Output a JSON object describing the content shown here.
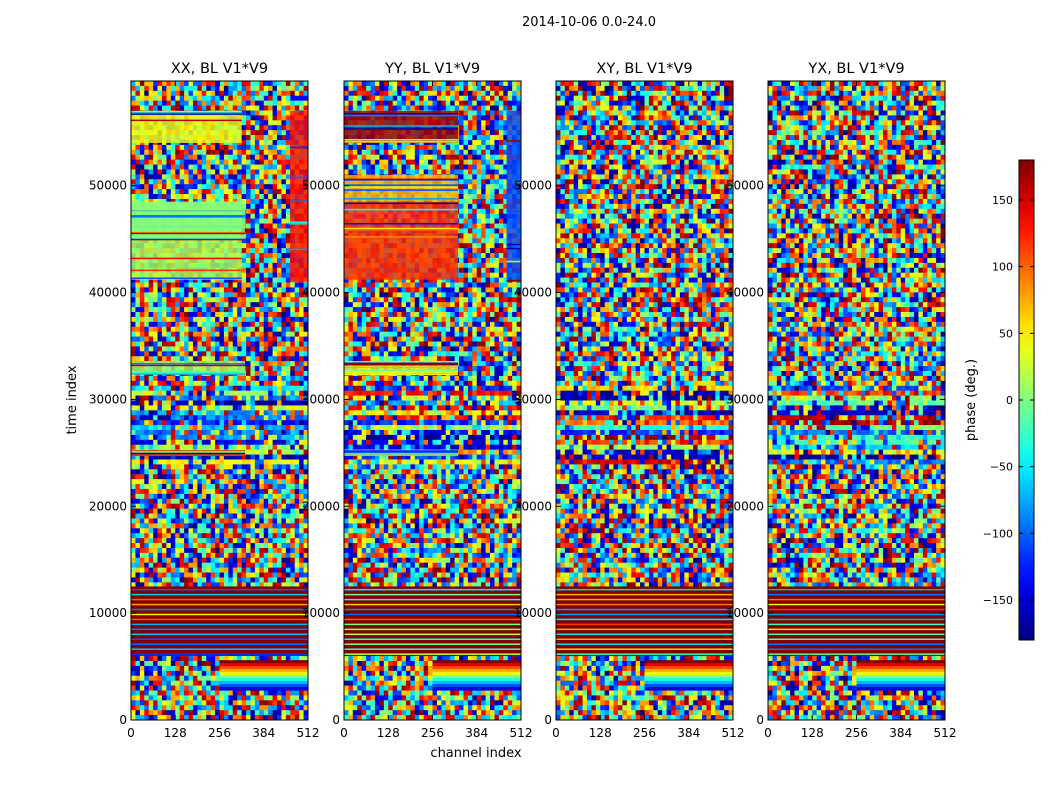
{
  "chart_data": {
    "type": "heatmap",
    "suptitle": "2014-10-06 0.0-24.0",
    "xlabel": "channel index",
    "ylabel": "time index",
    "xlim": [
      0,
      512
    ],
    "ylim": [
      0,
      59800
    ],
    "x_ticks": [
      0,
      128,
      256,
      384,
      512
    ],
    "x_tick_labels": [
      "0",
      "128",
      "256",
      "384",
      "512"
    ],
    "y_ticks": [
      0,
      10000,
      20000,
      30000,
      40000,
      50000
    ],
    "y_tick_labels": [
      "0",
      "10000",
      "20000",
      "30000",
      "40000",
      "50000"
    ],
    "colormap": "jet",
    "colorbar": {
      "label": "phase (deg.)",
      "range": [
        -180,
        180
      ],
      "ticks": [
        -150,
        -100,
        -50,
        0,
        50,
        100,
        150
      ],
      "tick_labels": [
        "−150",
        "−100",
        "−50",
        "0",
        "50",
        "100",
        "150"
      ]
    },
    "panels": [
      {
        "title": "XX, BL V1*V9",
        "coherent_bands": [
          {
            "t0": 32400,
            "t1": 33600,
            "c0": 0,
            "c1": 330,
            "phase": 10
          },
          {
            "t0": 41200,
            "t1": 48500,
            "c0": 0,
            "c1": 320,
            "phase": 15
          },
          {
            "t0": 45000,
            "t1": 48500,
            "c0": 0,
            "c1": 330,
            "phase": 0
          },
          {
            "t0": 54000,
            "t1": 57000,
            "c0": 0,
            "c1": 320,
            "phase": 40
          },
          {
            "t0": 41000,
            "t1": 57000,
            "c0": 460,
            "c1": 512,
            "phase": 130
          },
          {
            "t0": 24800,
            "t1": 25300,
            "c0": 0,
            "c1": 330,
            "phase": 40
          }
        ]
      },
      {
        "title": "YY, BL V1*V9",
        "coherent_bands": [
          {
            "t0": 32400,
            "t1": 33600,
            "c0": 0,
            "c1": 330,
            "phase": 30
          },
          {
            "t0": 41200,
            "t1": 48500,
            "c0": 0,
            "c1": 330,
            "phase": 120
          },
          {
            "t0": 48500,
            "t1": 51000,
            "c0": 0,
            "c1": 330,
            "phase": 70
          },
          {
            "t0": 54000,
            "t1": 57000,
            "c0": 0,
            "c1": 330,
            "phase": 170
          },
          {
            "t0": 41000,
            "t1": 57000,
            "c0": 470,
            "c1": 512,
            "phase": -110
          },
          {
            "t0": 24800,
            "t1": 25300,
            "c0": 0,
            "c1": 330,
            "phase": 40
          }
        ]
      },
      {
        "title": "XY, BL V1*V9",
        "coherent_bands": []
      },
      {
        "title": "YX, BL V1*V9",
        "coherent_bands": []
      }
    ],
    "common_features": {
      "saturated_block": {
        "t0": 6000,
        "t1": 12500,
        "phase": 180
      },
      "fringe_region": {
        "t0": 2800,
        "t1": 5600,
        "c0": 256,
        "c1": 512
      },
      "striped_region": {
        "t0": 24000,
        "t1": 31500
      }
    }
  }
}
